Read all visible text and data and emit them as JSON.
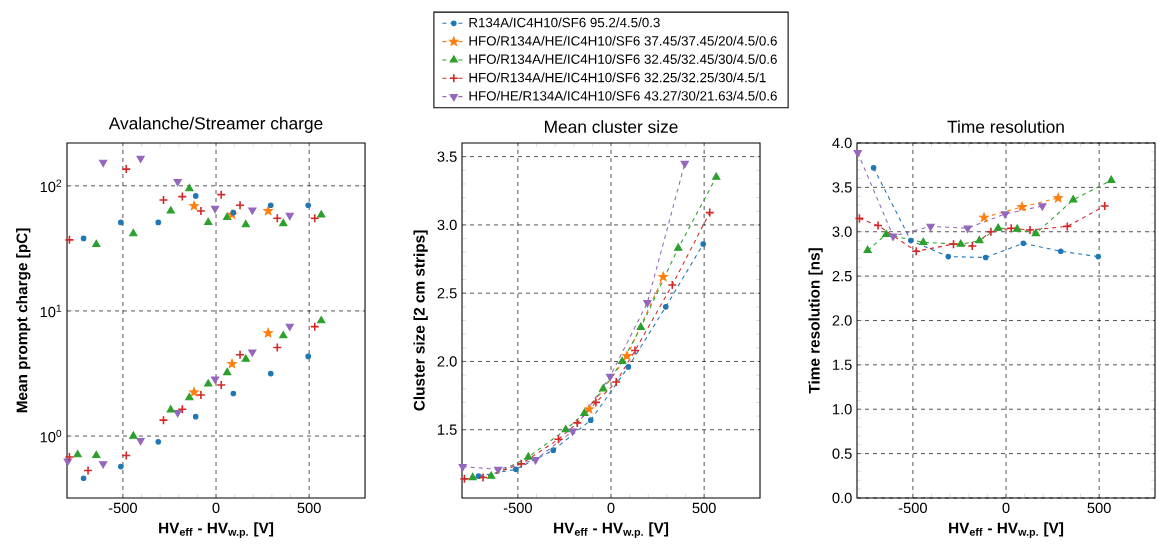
{
  "chart_data": [
    {
      "type": "scatter",
      "title": "Avalanche/Streamer charge",
      "xlabel": "HV$_{eff}$ - HV$_{w.p.}$ [V]",
      "ylabel": "Mean prompt charge [pC]",
      "log": "y",
      "grid": true,
      "xlim": [
        -800,
        800
      ],
      "xticks": [
        -500,
        0,
        500
      ],
      "ylim": [
        0.32,
        220
      ],
      "yticks": [
        {
          "value": 1,
          "label": "10$^{0}$"
        },
        {
          "value": 10,
          "label": "10$^{1}$"
        },
        {
          "value": 100,
          "label": "10$^{2}$"
        }
      ],
      "series": [
        {
          "color": "#1f77b4",
          "marker": "circle",
          "x": [
            -711,
            -511,
            -310,
            -109,
            93,
            294,
            495
          ],
          "values": [
            0.46,
            0.57,
            0.9,
            1.43,
            2.19,
            3.16,
            4.33
          ]
        },
        {
          "color": "#1f77b4",
          "marker": "circle",
          "x": [
            -711,
            -511,
            -310,
            -109,
            93,
            294,
            495
          ],
          "values": [
            38,
            51,
            51,
            83,
            61,
            70,
            70
          ]
        },
        {
          "color": "#ff7f0e",
          "marker": "star",
          "x": [
            -118,
            86,
            280
          ],
          "values": [
            2.24,
            3.78,
            6.66
          ]
        },
        {
          "color": "#ff7f0e",
          "marker": "star",
          "x": [
            -118,
            86,
            280
          ],
          "values": [
            69,
            59,
            63
          ]
        },
        {
          "color": "#2ca02c",
          "marker": "triangle",
          "x": [
            -743,
            -643,
            -444,
            -243,
            -143,
            -42,
            60,
            160,
            361,
            565
          ],
          "values": [
            0.71,
            0.7,
            1.0,
            1.62,
            2.03,
            2.61,
            3.22,
            4.12,
            6.34,
            8.36
          ]
        },
        {
          "color": "#2ca02c",
          "marker": "triangle",
          "x": [
            -643,
            -444,
            -243,
            -143,
            -42,
            60,
            160,
            361,
            565
          ],
          "values": [
            34,
            41.5,
            63,
            95,
            51,
            56,
            49,
            50,
            58.5
          ]
        },
        {
          "color": "#d62728",
          "marker": "cross",
          "x": [
            -787,
            -687,
            -482,
            -282,
            -181,
            -81,
            28,
            129,
            329,
            530
          ],
          "values": [
            0.68,
            0.53,
            0.7,
            1.34,
            1.64,
            2.13,
            2.56,
            4.46,
            5.11,
            7.49
          ]
        },
        {
          "color": "#d62728",
          "marker": "cross",
          "x": [
            -787,
            -482,
            -282,
            -181,
            -81,
            28,
            129,
            329,
            530
          ],
          "values": [
            37,
            136,
            77,
            82,
            63,
            85,
            70,
            55,
            55
          ]
        },
        {
          "color": "#9467bd",
          "marker": "triangle_down",
          "x": [
            -796,
            -606,
            -405,
            -206,
            -5,
            195,
            396
          ],
          "values": [
            0.63,
            0.6,
            0.92,
            1.54,
            2.85,
            4.69,
            7.54
          ]
        },
        {
          "color": "#9467bd",
          "marker": "triangle_down",
          "x": [
            -606,
            -405,
            -206,
            -5,
            195,
            396
          ],
          "values": [
            154,
            166,
            108,
            66,
            64,
            58
          ]
        }
      ]
    },
    {
      "type": "line",
      "title": "Mean cluster size",
      "xlabel": "HV$_{eff}$ - HV$_{w.p.}$ [V]",
      "ylabel": "Cluster size [2 cm strips]",
      "grid": true,
      "line_style": "dashed",
      "legend": "top",
      "xlim": [
        -800,
        800
      ],
      "xticks": [
        -500,
        0,
        500
      ],
      "ylim": [
        1.0,
        3.6
      ],
      "yticks": [
        {
          "value": 1.5,
          "label": "1.5"
        },
        {
          "value": 2,
          "label": "2.0"
        },
        {
          "value": 2.5,
          "label": "2.5"
        },
        {
          "value": 3,
          "label": "3.0"
        },
        {
          "value": 3.5,
          "label": "3.5"
        }
      ],
      "series": [
        {
          "name": "R134A/IC4H10/SF6 95.2/4.5/0.3",
          "color": "#1f77b4",
          "marker": "circle",
          "x": [
            -711,
            -511,
            -310,
            -109,
            93,
            294,
            495
          ],
          "values": [
            1.16,
            1.21,
            1.35,
            1.57,
            1.96,
            2.4,
            2.86
          ]
        },
        {
          "name": "HFO/R134A/HE/IC4H10/SF6 37.45/37.45/20/4.5/0.6",
          "color": "#ff7f0e",
          "marker": "star",
          "x": [
            -118,
            86,
            280
          ],
          "values": [
            1.65,
            2.04,
            2.62
          ]
        },
        {
          "name": "HFO/R134A/HE/IC4H10/SF6 32.45/32.45/30/4.5/0.6",
          "color": "#2ca02c",
          "marker": "triangle",
          "x": [
            -743,
            -643,
            -444,
            -243,
            -143,
            -42,
            60,
            160,
            361,
            565
          ],
          "values": [
            1.15,
            1.16,
            1.3,
            1.5,
            1.62,
            1.8,
            2.0,
            2.25,
            2.83,
            3.35
          ]
        },
        {
          "name": "HFO/R134A/HE/IC4H10/SF6 32.25/32.25/30/4.5/1",
          "color": "#d62728",
          "marker": "cross",
          "x": [
            -787,
            -687,
            -482,
            -282,
            -181,
            -81,
            28,
            129,
            329,
            530
          ],
          "values": [
            1.14,
            1.15,
            1.25,
            1.43,
            1.55,
            1.7,
            1.85,
            2.08,
            2.56,
            3.09
          ]
        },
        {
          "name": "HFO/HE/R134A/IC4H10/SF6 43.27/30/21.63/4.5/0.6",
          "color": "#9467bd",
          "marker": "triangle_down",
          "x": [
            -796,
            -606,
            -405,
            -206,
            -5,
            195,
            396
          ],
          "values": [
            1.23,
            1.21,
            1.28,
            1.49,
            1.89,
            2.43,
            3.45
          ]
        }
      ]
    },
    {
      "type": "line",
      "title": "Time resolution",
      "xlabel": "HV$_{eff}$ - HV$_{w.p.}$ [V]",
      "ylabel": "Time resolution [ns]",
      "grid": true,
      "line_style": "dashed",
      "xlim": [
        -800,
        800
      ],
      "xticks": [
        -500,
        0,
        500
      ],
      "ylim": [
        0,
        4
      ],
      "yticks": [
        {
          "value": 0,
          "label": "0.0"
        },
        {
          "value": 0.5,
          "label": "0.5"
        },
        {
          "value": 1,
          "label": "1.0"
        },
        {
          "value": 1.5,
          "label": "1.5"
        },
        {
          "value": 2,
          "label": "2.0"
        },
        {
          "value": 2.5,
          "label": "2.5"
        },
        {
          "value": 3,
          "label": "3.0"
        },
        {
          "value": 3.5,
          "label": "3.5"
        },
        {
          "value": 4,
          "label": "4.0"
        }
      ],
      "series": [
        {
          "color": "#1f77b4",
          "marker": "circle",
          "x": [
            -711,
            -511,
            -310,
            -109,
            93,
            294,
            495
          ],
          "values": [
            3.72,
            2.9,
            2.72,
            2.71,
            2.87,
            2.78,
            2.72
          ]
        },
        {
          "color": "#ff7f0e",
          "marker": "star",
          "x": [
            -118,
            86,
            280
          ],
          "values": [
            3.16,
            3.28,
            3.38
          ]
        },
        {
          "color": "#2ca02c",
          "marker": "triangle",
          "x": [
            -743,
            -643,
            -444,
            -243,
            -143,
            -42,
            60,
            160,
            361,
            565
          ],
          "values": [
            2.79,
            2.97,
            2.88,
            2.86,
            2.9,
            3.04,
            3.03,
            2.98,
            3.36,
            3.58
          ]
        },
        {
          "color": "#d62728",
          "marker": "cross",
          "x": [
            -787,
            -687,
            -482,
            -282,
            -181,
            -81,
            28,
            129,
            329,
            530
          ],
          "values": [
            3.15,
            3.07,
            2.78,
            2.86,
            2.84,
            3.0,
            3.04,
            3.02,
            3.06,
            3.29
          ]
        },
        {
          "color": "#9467bd",
          "marker": "triangle_down",
          "x": [
            -796,
            -606,
            -405,
            -206,
            -5,
            195
          ],
          "values": [
            3.89,
            2.95,
            3.06,
            3.04,
            3.2,
            3.29
          ]
        }
      ]
    }
  ]
}
